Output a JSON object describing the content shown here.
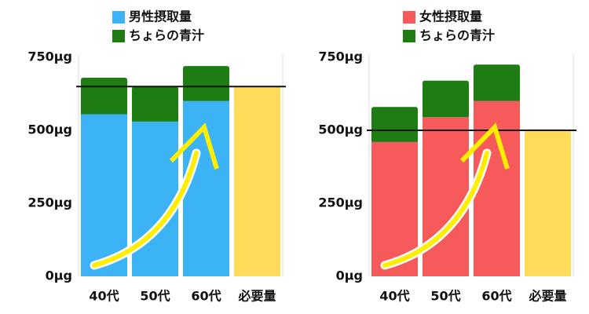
{
  "chart_data": [
    {
      "type": "stacked-bar",
      "categories": [
        "40代",
        "50代",
        "60代",
        "必要量"
      ],
      "series": [
        {
          "name": "男性摂取量",
          "color": "#3bb3f5",
          "values": [
            555,
            530,
            600,
            null
          ]
        },
        {
          "name": "ちょらの青汁",
          "color": "#1e7d12",
          "values": [
            125,
            120,
            120,
            null
          ]
        }
      ],
      "requirement": 650,
      "requirement_color": "#fedc5a",
      "ylim": [
        0,
        750
      ],
      "yticks": [
        {
          "value": 0,
          "label": "0µg"
        },
        {
          "value": 250,
          "label": "250µg"
        },
        {
          "value": 500,
          "label": "500µg"
        },
        {
          "value": 750,
          "label": "750µg"
        }
      ]
    },
    {
      "type": "stacked-bar",
      "categories": [
        "40代",
        "50代",
        "60代",
        "必要量"
      ],
      "series": [
        {
          "name": "女性摂取量",
          "color": "#f75a5a",
          "values": [
            460,
            545,
            600,
            null
          ]
        },
        {
          "name": "ちょらの青汁",
          "color": "#1e7d12",
          "values": [
            120,
            125,
            125,
            null
          ]
        }
      ],
      "requirement": 500,
      "requirement_color": "#fedc5a",
      "ylim": [
        0,
        750
      ],
      "yticks": [
        {
          "value": 0,
          "label": "0µg"
        },
        {
          "value": 250,
          "label": "250µg"
        },
        {
          "value": 500,
          "label": "500µg"
        },
        {
          "value": 750,
          "label": "750µg"
        }
      ]
    }
  ]
}
